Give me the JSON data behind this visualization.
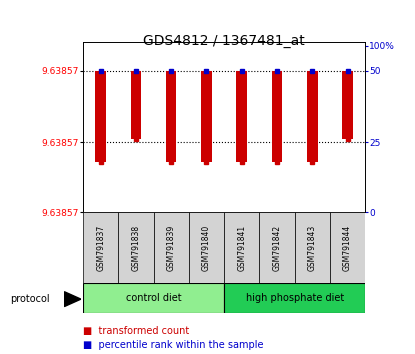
{
  "title": "GDS4812 / 1367481_at",
  "samples": [
    "GSM791837",
    "GSM791838",
    "GSM791839",
    "GSM791840",
    "GSM791841",
    "GSM791842",
    "GSM791843",
    "GSM791844"
  ],
  "bar_tops": [
    0.85,
    0.85,
    0.85,
    0.85,
    0.85,
    0.85,
    0.85,
    0.85
  ],
  "bar_bottoms": [
    0.3,
    0.44,
    0.3,
    0.3,
    0.3,
    0.3,
    0.3,
    0.44
  ],
  "blue_y": [
    0.85,
    0.85,
    0.85,
    0.85,
    0.85,
    0.85,
    0.85,
    0.85
  ],
  "red_dot_y": [
    0.3,
    0.44,
    0.3,
    0.3,
    0.3,
    0.3,
    0.3,
    0.44
  ],
  "hline1": 0.85,
  "hline2": 0.42,
  "left_ytick_positions": [
    0.85,
    0.42,
    0.0
  ],
  "left_ytick_labels": [
    "9.63857",
    "9.63857",
    "9.63857"
  ],
  "right_ytick_positions": [
    1.0,
    0.85,
    0.42,
    0.0
  ],
  "right_ytick_labels": [
    "100%",
    "50",
    "25",
    "0"
  ],
  "ylim": [
    0.0,
    1.02
  ],
  "bar_color": "#CC0000",
  "blue_color": "#0000CC",
  "title_fontsize": 10,
  "label_fontsize": 5.5,
  "legend_fontsize": 7,
  "protocol_fontsize": 7,
  "group_colors": [
    "#90EE90",
    "#22CC55"
  ],
  "group_labels": [
    "control diet",
    "high phosphate diet"
  ],
  "group_splits": [
    0,
    4,
    8
  ]
}
